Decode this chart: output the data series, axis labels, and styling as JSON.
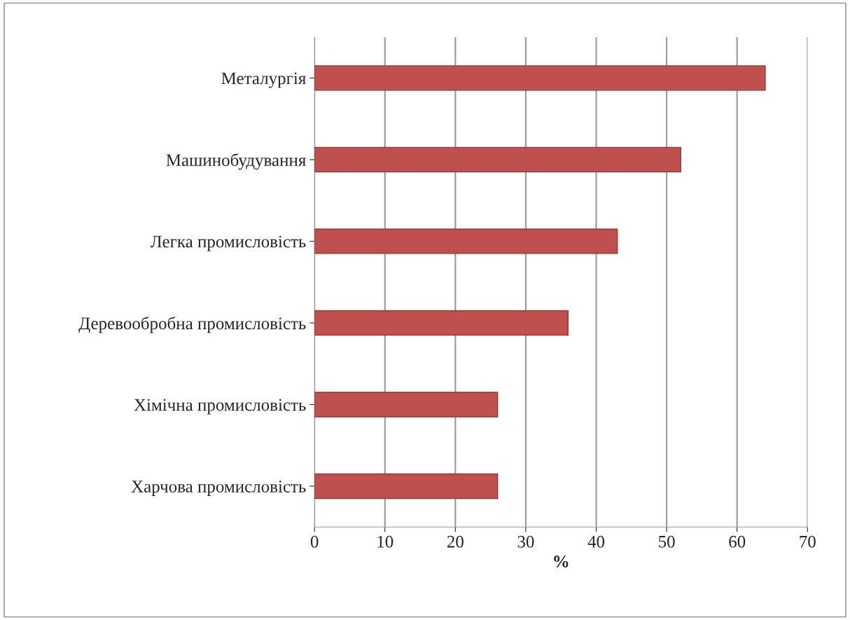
{
  "chart_data": {
    "type": "bar",
    "orientation": "horizontal",
    "xlabel": "%",
    "categories": [
      "Металургія",
      "Машинобудування",
      "Легка промисловість",
      "Деревообробна промисловість",
      "Хімічна промисловість",
      "Харчова промисловість"
    ],
    "values": [
      64,
      52,
      43,
      36,
      26,
      26
    ],
    "color": "#c0504d",
    "xlim": [
      0,
      70
    ],
    "xticks": [
      0,
      10,
      20,
      30,
      40,
      50,
      60,
      70
    ],
    "grid": "x",
    "legend": false
  }
}
